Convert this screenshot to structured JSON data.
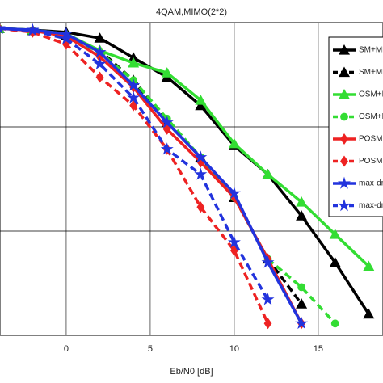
{
  "chart_data": {
    "type": "line",
    "title": "4QAM,MIMO(2*2)",
    "x_label": "Eb/N0 [dB]",
    "log_y": true,
    "grid": true,
    "xlim": [
      -3.94,
      18.85
    ],
    "xticks": [
      0,
      5,
      10,
      15
    ],
    "ylim": [
      0.001,
      1
    ],
    "yticks": [
      0.001,
      0.01,
      0.1,
      1
    ],
    "series": [
      {
        "name": "SM+ML",
        "color": "#000000",
        "dash": false,
        "marker": "triangle",
        "x": [
          -4,
          -2,
          0,
          2,
          4,
          6,
          8,
          10,
          12,
          14,
          16,
          18
        ],
        "values": [
          0.88,
          0.85,
          0.81,
          0.71,
          0.46,
          0.3,
          0.16,
          0.066,
          0.035,
          0.014,
          0.005,
          0.0016
        ]
      },
      {
        "name": "SM+ML-soft",
        "color": "#000000",
        "dash": true,
        "marker": "triangle",
        "x": [
          -4,
          -2,
          0,
          2,
          4,
          6,
          8,
          10,
          12,
          14
        ],
        "values": [
          0.88,
          0.84,
          0.75,
          0.54,
          0.28,
          0.11,
          0.051,
          0.021,
          0.0054,
          0.002
        ]
      },
      {
        "name": "OSM+ML",
        "color": "#33dd33",
        "dash": false,
        "marker": "triangle",
        "x": [
          -4,
          -2,
          0,
          2,
          4,
          6,
          8,
          10,
          12,
          14,
          16,
          18
        ],
        "values": [
          0.88,
          0.85,
          0.78,
          0.54,
          0.41,
          0.33,
          0.18,
          0.069,
          0.035,
          0.019,
          0.0093,
          0.0046
        ]
      },
      {
        "name": "OSM+ML-soft",
        "color": "#33dd33",
        "dash": true,
        "marker": "circle",
        "x": [
          -4,
          -2,
          0,
          2,
          4,
          6,
          8,
          10,
          12,
          14,
          16
        ],
        "values": [
          0.88,
          0.84,
          0.74,
          0.52,
          0.28,
          0.12,
          0.051,
          0.021,
          0.0054,
          0.0029,
          0.0013
        ]
      },
      {
        "name": "POSM+ML",
        "color": "#ee2222",
        "dash": false,
        "marker": "diamond",
        "x": [
          -4,
          -2,
          0,
          2,
          4,
          6,
          8,
          10,
          12,
          14
        ],
        "values": [
          0.88,
          0.84,
          0.74,
          0.47,
          0.24,
          0.095,
          0.046,
          0.021,
          0.0054,
          0.0013
        ]
      },
      {
        "name": "POSM+ML-soft",
        "color": "#ee2222",
        "dash": true,
        "marker": "diamond",
        "x": [
          -4,
          -2,
          0,
          2,
          4,
          6,
          8,
          10,
          12
        ],
        "values": [
          0.88,
          0.81,
          0.62,
          0.3,
          0.16,
          0.061,
          0.017,
          0.0065,
          0.0013
        ]
      },
      {
        "name": "max-dmin-ML",
        "color": "#2233dd",
        "dash": false,
        "marker": "star",
        "x": [
          -4,
          -2,
          0,
          2,
          4,
          6,
          8,
          10,
          12,
          14
        ],
        "values": [
          0.88,
          0.85,
          0.78,
          0.52,
          0.25,
          0.11,
          0.051,
          0.023,
          0.005,
          0.0013
        ]
      },
      {
        "name": "max-dmin-ML-soft",
        "color": "#2233dd",
        "dash": true,
        "marker": "star",
        "x": [
          -4,
          -2,
          0,
          2,
          4,
          6,
          8,
          10,
          12
        ],
        "values": [
          0.88,
          0.84,
          0.7,
          0.4,
          0.19,
          0.061,
          0.035,
          0.0078,
          0.0022
        ]
      }
    ]
  }
}
